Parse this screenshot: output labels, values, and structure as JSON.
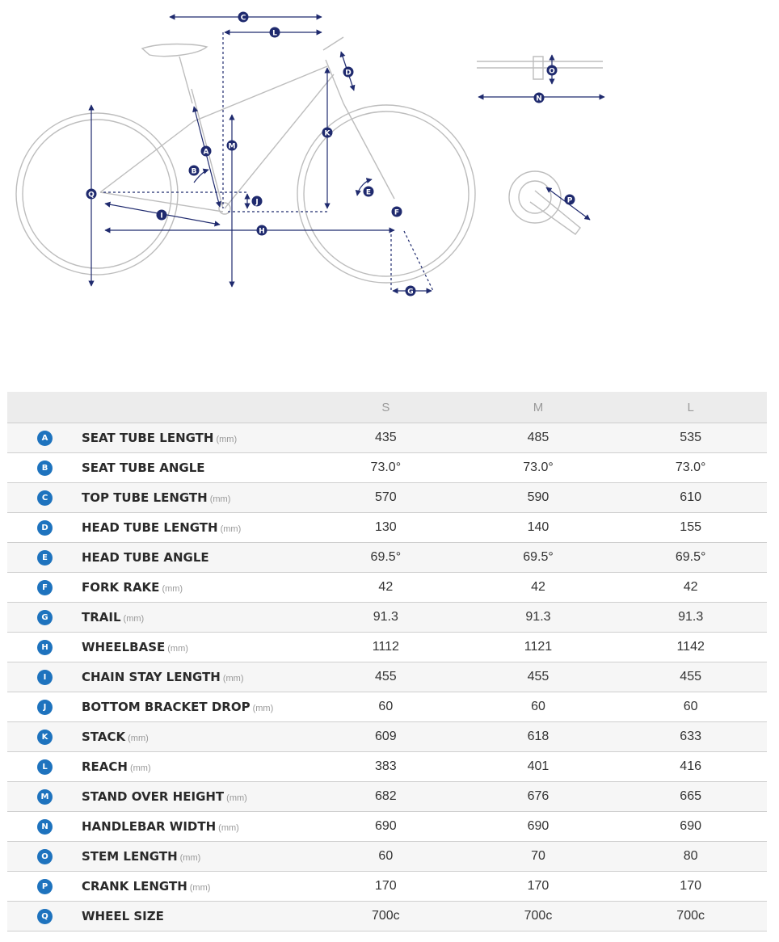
{
  "diagram": {
    "labels": [
      "A",
      "B",
      "C",
      "D",
      "E",
      "F",
      "G",
      "H",
      "I",
      "J",
      "K",
      "L",
      "M",
      "N",
      "O",
      "P",
      "Q"
    ],
    "colors": {
      "frame": "#bdbdbd",
      "dimension": "#1f2a6e"
    }
  },
  "table": {
    "headers": [
      "",
      "",
      "S",
      "M",
      "L"
    ],
    "rows": [
      {
        "letter": "A",
        "name": "SEAT TUBE LENGTH",
        "unit": "(mm)",
        "values": [
          "435",
          "485",
          "535"
        ]
      },
      {
        "letter": "B",
        "name": "SEAT TUBE ANGLE",
        "unit": "",
        "values": [
          "73.0°",
          "73.0°",
          "73.0°"
        ]
      },
      {
        "letter": "C",
        "name": "TOP TUBE LENGTH",
        "unit": "(mm)",
        "values": [
          "570",
          "590",
          "610"
        ]
      },
      {
        "letter": "D",
        "name": "HEAD TUBE LENGTH",
        "unit": "(mm)",
        "values": [
          "130",
          "140",
          "155"
        ]
      },
      {
        "letter": "E",
        "name": "HEAD TUBE ANGLE",
        "unit": "",
        "values": [
          "69.5°",
          "69.5°",
          "69.5°"
        ]
      },
      {
        "letter": "F",
        "name": "FORK RAKE",
        "unit": "(mm)",
        "values": [
          "42",
          "42",
          "42"
        ]
      },
      {
        "letter": "G",
        "name": "TRAIL",
        "unit": "(mm)",
        "values": [
          "91.3",
          "91.3",
          "91.3"
        ]
      },
      {
        "letter": "H",
        "name": "WHEELBASE",
        "unit": "(mm)",
        "values": [
          "1112",
          "1121",
          "1142"
        ]
      },
      {
        "letter": "I",
        "name": "CHAIN STAY LENGTH",
        "unit": "(mm)",
        "values": [
          "455",
          "455",
          "455"
        ]
      },
      {
        "letter": "J",
        "name": "BOTTOM BRACKET DROP",
        "unit": "(mm)",
        "values": [
          "60",
          "60",
          "60"
        ]
      },
      {
        "letter": "K",
        "name": "STACK",
        "unit": "(mm)",
        "values": [
          "609",
          "618",
          "633"
        ]
      },
      {
        "letter": "L",
        "name": "REACH",
        "unit": "(mm)",
        "values": [
          "383",
          "401",
          "416"
        ]
      },
      {
        "letter": "M",
        "name": "STAND OVER HEIGHT",
        "unit": "(mm)",
        "values": [
          "682",
          "676",
          "665"
        ]
      },
      {
        "letter": "N",
        "name": "HANDLEBAR WIDTH",
        "unit": "(mm)",
        "values": [
          "690",
          "690",
          "690"
        ]
      },
      {
        "letter": "O",
        "name": "STEM LENGTH",
        "unit": "(mm)",
        "values": [
          "60",
          "70",
          "80"
        ]
      },
      {
        "letter": "P",
        "name": "CRANK LENGTH",
        "unit": "(mm)",
        "values": [
          "170",
          "170",
          "170"
        ]
      },
      {
        "letter": "Q",
        "name": "WHEEL SIZE",
        "unit": "",
        "values": [
          "700c",
          "700c",
          "700c"
        ]
      }
    ]
  }
}
